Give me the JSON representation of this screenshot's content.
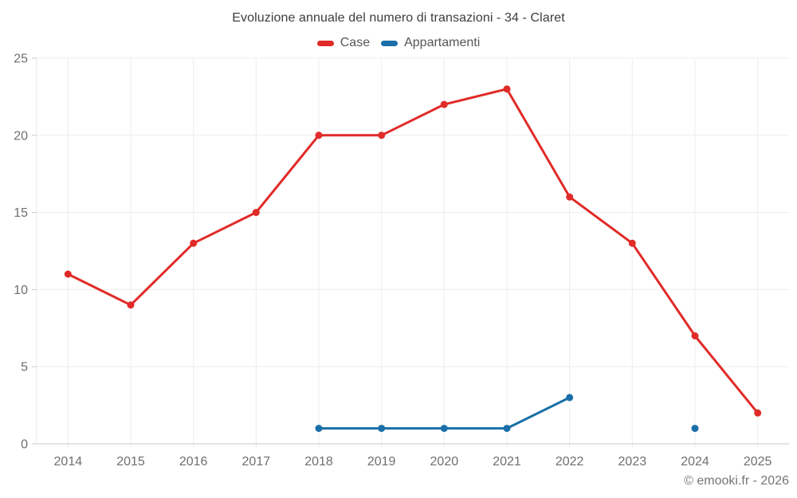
{
  "header": {
    "title": "Evoluzione annuale del numero di transazioni - 34 - Claret"
  },
  "footer": {
    "copyright": "© emooki.fr - 2026"
  },
  "colors": {
    "case_red": "#e02b28",
    "appartamenti_blue": "#1a6fa8",
    "grid": "#ededed",
    "axis_line": "#c9c9c9",
    "axis_side": "#e7e7e7",
    "tick_label": "#6f6f6f",
    "title_text": "#3d3d3d",
    "legend_text": "#565656",
    "copyright_text": "#757575"
  },
  "chart_data": {
    "type": "line",
    "title": "Evoluzione annuale del numero di transazioni - 34 - Claret",
    "categories": [
      "2014",
      "2015",
      "2016",
      "2017",
      "2018",
      "2019",
      "2020",
      "2021",
      "2022",
      "2023",
      "2024",
      "2025"
    ],
    "series": [
      {
        "name": "Case",
        "color": "#e02b28",
        "values": [
          11,
          9,
          13,
          15,
          20,
          20,
          22,
          23,
          16,
          13,
          7,
          2
        ]
      },
      {
        "name": "Appartamenti",
        "color": "#1a6fa8",
        "values": [
          null,
          null,
          null,
          null,
          1,
          1,
          1,
          1,
          3,
          null,
          1,
          null
        ]
      }
    ],
    "xlabel": "",
    "ylabel": "",
    "ylim": [
      0,
      25
    ],
    "yticks": [
      0,
      5,
      10,
      15,
      20,
      25
    ],
    "grid": true,
    "legend_position": "top"
  }
}
